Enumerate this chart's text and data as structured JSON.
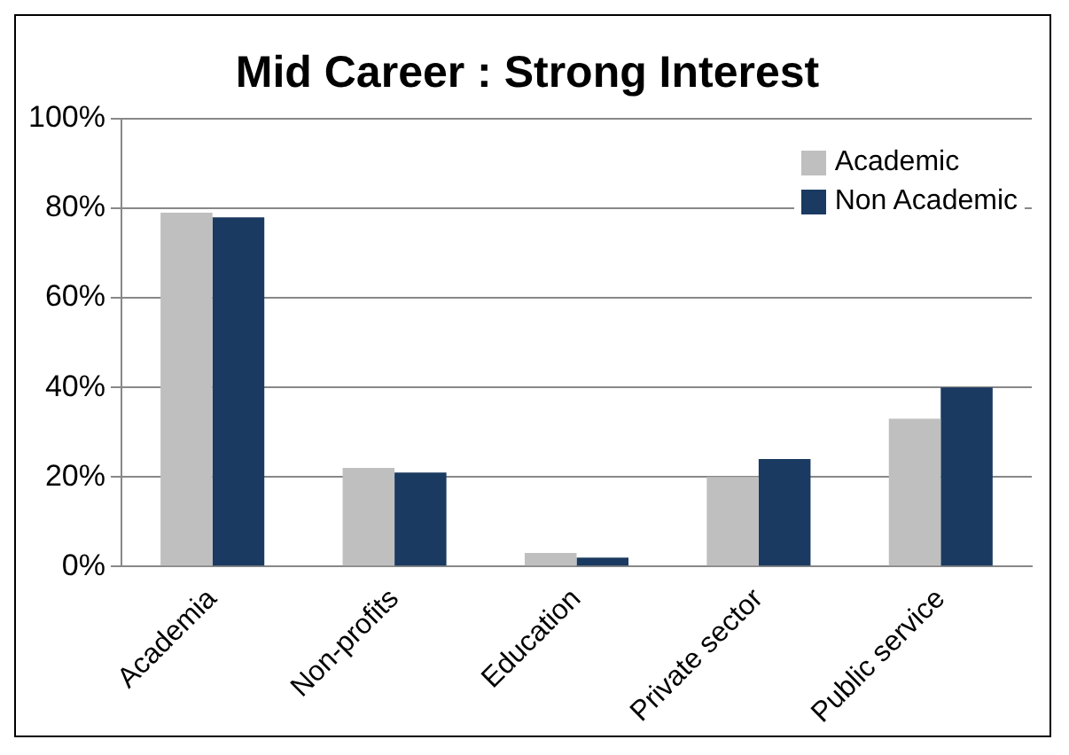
{
  "chart_data": {
    "type": "bar",
    "title": "Mid Career : Strong Interest",
    "categories": [
      "Academia",
      "Non-profits",
      "Education",
      "Private sector",
      "Public service"
    ],
    "series": [
      {
        "name": "Academic",
        "color": "#bfbfbf",
        "values": [
          79,
          22,
          3,
          20,
          33
        ]
      },
      {
        "name": "Non Academic",
        "color": "#1a3a61",
        "values": [
          78,
          21,
          2,
          24,
          40
        ]
      }
    ],
    "ylim": [
      0,
      100
    ],
    "yticks": [
      {
        "value": 0,
        "label": "0%"
      },
      {
        "value": 20,
        "label": "20%"
      },
      {
        "value": 40,
        "label": "40%"
      },
      {
        "value": 60,
        "label": "60%"
      },
      {
        "value": 80,
        "label": "80%"
      },
      {
        "value": 100,
        "label": "100%"
      }
    ],
    "grid": "y",
    "legend": "top right"
  }
}
